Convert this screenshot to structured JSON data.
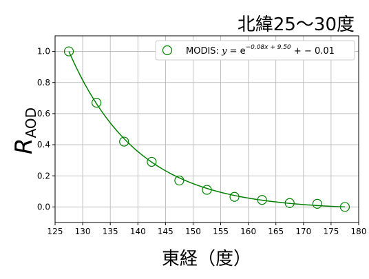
{
  "chart_data": {
    "type": "scatter",
    "title": "北緯25〜30度",
    "xlabel": "東経（度）",
    "ylabel": "R",
    "ylabel_sub": "AOD",
    "xlim": [
      125,
      180
    ],
    "ylim": [
      -0.1,
      1.1
    ],
    "xticks": [
      125,
      130,
      135,
      140,
      145,
      150,
      155,
      160,
      165,
      170,
      175,
      180
    ],
    "yticks": [
      0.0,
      0.2,
      0.4,
      0.6,
      0.8,
      1.0
    ],
    "grid": true,
    "legend_position": "top-right",
    "colors": {
      "series": "#008000"
    },
    "series": [
      {
        "name": "MODIS",
        "x": [
          127.5,
          132.5,
          137.5,
          142.5,
          147.5,
          152.5,
          157.5,
          162.5,
          167.5,
          172.5,
          177.5
        ],
        "y": [
          1.0,
          0.67,
          0.42,
          0.29,
          0.17,
          0.11,
          0.065,
          0.045,
          0.025,
          0.02,
          0.0
        ]
      }
    ],
    "fit": {
      "label_prefix": "MODIS: ",
      "label_eq_lhs": "y",
      "label_eq_sign": " = e",
      "label_exponent": "−0.08x + 9.50",
      "label_suffix": " + − 0.01",
      "a": -0.08,
      "b": 9.5,
      "c": -0.01,
      "x_range": [
        127.5,
        177.5
      ]
    }
  }
}
